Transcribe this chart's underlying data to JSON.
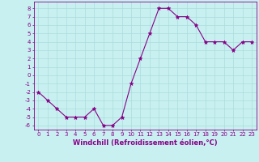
{
  "x": [
    0,
    1,
    2,
    3,
    4,
    5,
    6,
    7,
    8,
    9,
    10,
    11,
    12,
    13,
    14,
    15,
    16,
    17,
    18,
    19,
    20,
    21,
    22,
    23
  ],
  "y": [
    -2,
    -3,
    -4,
    -5,
    -5,
    -5,
    -4,
    -6,
    -6,
    -5,
    -1,
    2,
    5,
    8,
    8,
    7,
    7,
    6,
    4,
    4,
    4,
    3,
    4,
    4
  ],
  "line_color": "#880088",
  "marker": "*",
  "marker_size": 3.5,
  "bg_color": "#c8f0f0",
  "grid_color": "#aadddd",
  "xlabel": "Windchill (Refroidissement éolien,°C)",
  "xlabel_color": "#880088",
  "tick_color": "#880088",
  "ylim": [
    -6.5,
    8.8
  ],
  "xlim": [
    -0.5,
    23.5
  ],
  "yticks": [
    -6,
    -5,
    -4,
    -3,
    -2,
    -1,
    0,
    1,
    2,
    3,
    4,
    5,
    6,
    7,
    8
  ],
  "xticks": [
    0,
    1,
    2,
    3,
    4,
    5,
    6,
    7,
    8,
    9,
    10,
    11,
    12,
    13,
    14,
    15,
    16,
    17,
    18,
    19,
    20,
    21,
    22,
    23
  ],
  "tick_fontsize": 5.0,
  "xlabel_fontsize": 6.0
}
